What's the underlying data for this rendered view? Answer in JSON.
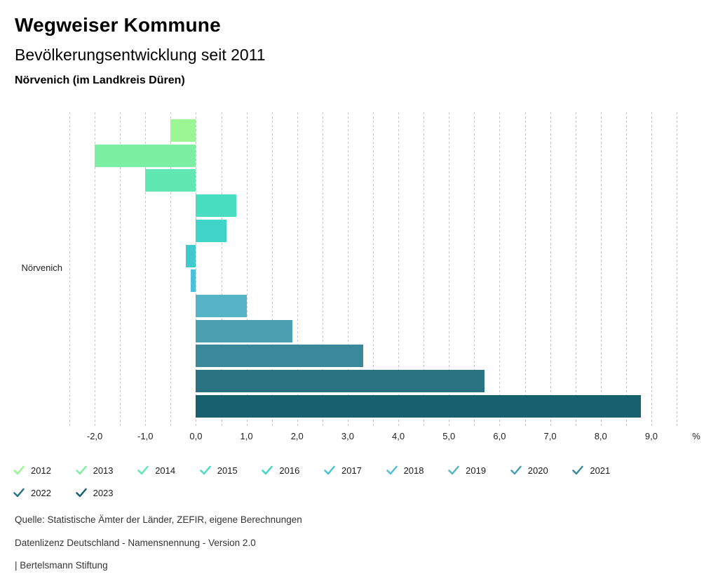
{
  "header": {
    "title": "Wegweiser Kommune",
    "subtitle": "Bevölkerungsentwicklung seit 2011",
    "region": "Nörvenich (im Landkreis Düren)"
  },
  "chart_data": {
    "type": "bar",
    "orientation": "horizontal",
    "title": "Bevölkerungsentwicklung seit 2011",
    "region_label": "Nörvenich",
    "categories": [
      "2012",
      "2013",
      "2014",
      "2015",
      "2016",
      "2017",
      "2018",
      "2019",
      "2020",
      "2021",
      "2022",
      "2023"
    ],
    "values": [
      -0.5,
      -2.0,
      -1.0,
      0.8,
      0.6,
      -0.2,
      -0.1,
      1.0,
      1.9,
      3.3,
      5.7,
      8.8
    ],
    "colors": [
      "#9BF793",
      "#7DEFA2",
      "#60E7B2",
      "#49DEC1",
      "#3ED5C8",
      "#40CACE",
      "#4DBFD8",
      "#57B3C6",
      "#4A9FB0",
      "#39899A",
      "#297383",
      "#16606F"
    ],
    "unit": "%",
    "xlim": [
      -2.5,
      9.5
    ],
    "grid_step": 0.5,
    "x_label_ticks": [
      -2,
      -1,
      0,
      1,
      2,
      3,
      4,
      5,
      6,
      7,
      8,
      9
    ],
    "x_tick_labels": [
      "-2,0",
      "-1,0",
      "0,0",
      "1,0",
      "2,0",
      "3,0",
      "4,0",
      "5,0",
      "6,0",
      "7,0",
      "8,0",
      "9,0"
    ],
    "grid": "dashed-vertical",
    "legend_position": "bottom"
  },
  "footer": {
    "source": "Quelle: Statistische Ämter der Länder, ZEFIR, eigene Berechnungen",
    "license": "Datenlizenz Deutschland - Namensnennung - Version 2.0",
    "attribution": "| Bertelsmann Stiftung"
  }
}
